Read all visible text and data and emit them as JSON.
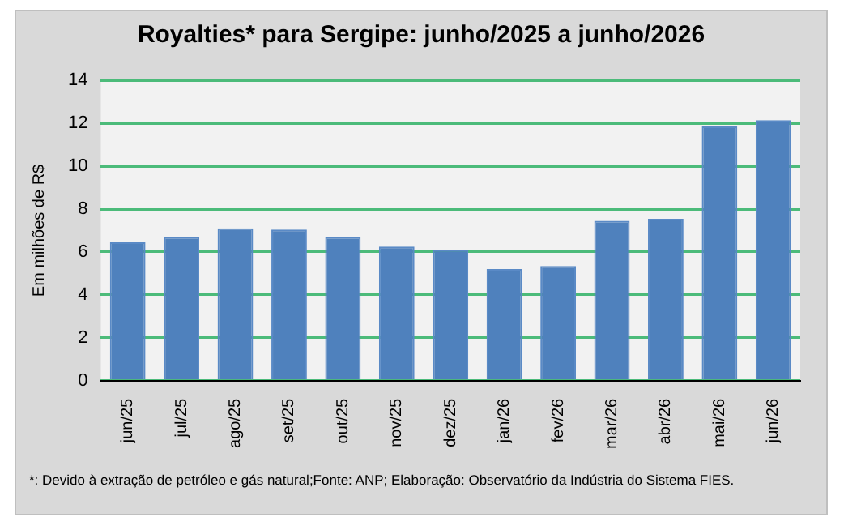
{
  "chart_data": {
    "type": "bar",
    "title": "Royalties* para Sergipe: junho/2025 a junho/2026",
    "ylabel": "Em milhões de R$",
    "categories": [
      "jun/25",
      "jul/25",
      "ago/25",
      "set/25",
      "out/25",
      "nov/25",
      "dez/25",
      "jan/26",
      "fev/26",
      "mar/26",
      "abr/26",
      "mai/26",
      "jun/26"
    ],
    "values": [
      6.45,
      6.7,
      7.1,
      7.05,
      6.7,
      6.25,
      6.1,
      5.2,
      5.35,
      7.45,
      7.55,
      11.85,
      12.15
    ],
    "color": "#4f81bd",
    "ylim": [
      0,
      14
    ],
    "yticks": [
      0,
      2,
      4,
      6,
      8,
      10,
      12,
      14
    ],
    "grid": "y",
    "legend": false,
    "annotations": [
      "*: Devido à extração de petróleo e gás natural;Fonte: ANP; Elaboração: Observatório da Indústria do Sistema FIES."
    ]
  }
}
